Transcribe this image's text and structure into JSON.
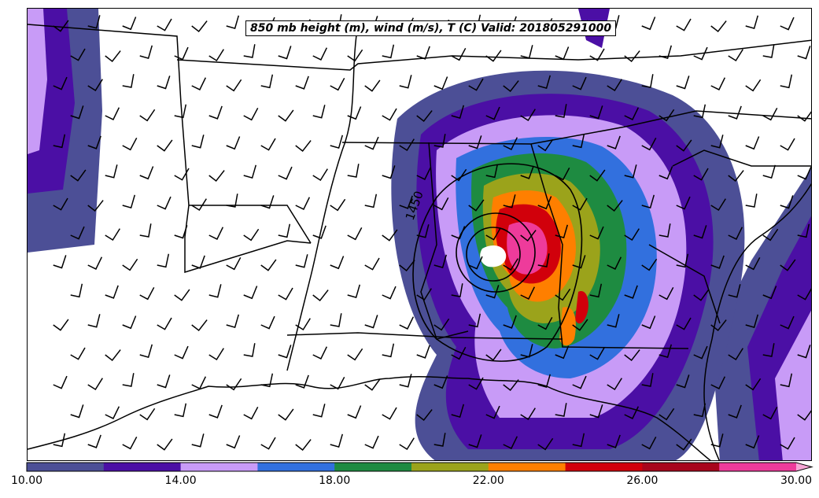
{
  "title": "850 mb height (m), wind (m/s), T (C) Valid: 201805291000",
  "contour_label": "1450",
  "colorbar": {
    "colors": [
      "#4c4f96",
      "#4b0fa5",
      "#c89bf7",
      "#3270de",
      "#1e8b41",
      "#9ba31b",
      "#ff7f00",
      "#d1000b",
      "#a8051c",
      "#ee3b9b",
      "#f6a6d6"
    ],
    "ticks": [
      "10.00",
      "14.00",
      "18.00",
      "22.00",
      "26.00",
      "30.00"
    ]
  },
  "colors": {
    "fill_outer": "#4c4f96",
    "fill_violet": "#4b0fa5",
    "fill_lavender": "#c89bf7",
    "fill_blue": "#3270de",
    "fill_green": "#1e8b41",
    "fill_olive": "#9ba31b",
    "fill_orange": "#ff7f00",
    "fill_red": "#d1000b",
    "fill_pink": "#ee3b9b"
  }
}
